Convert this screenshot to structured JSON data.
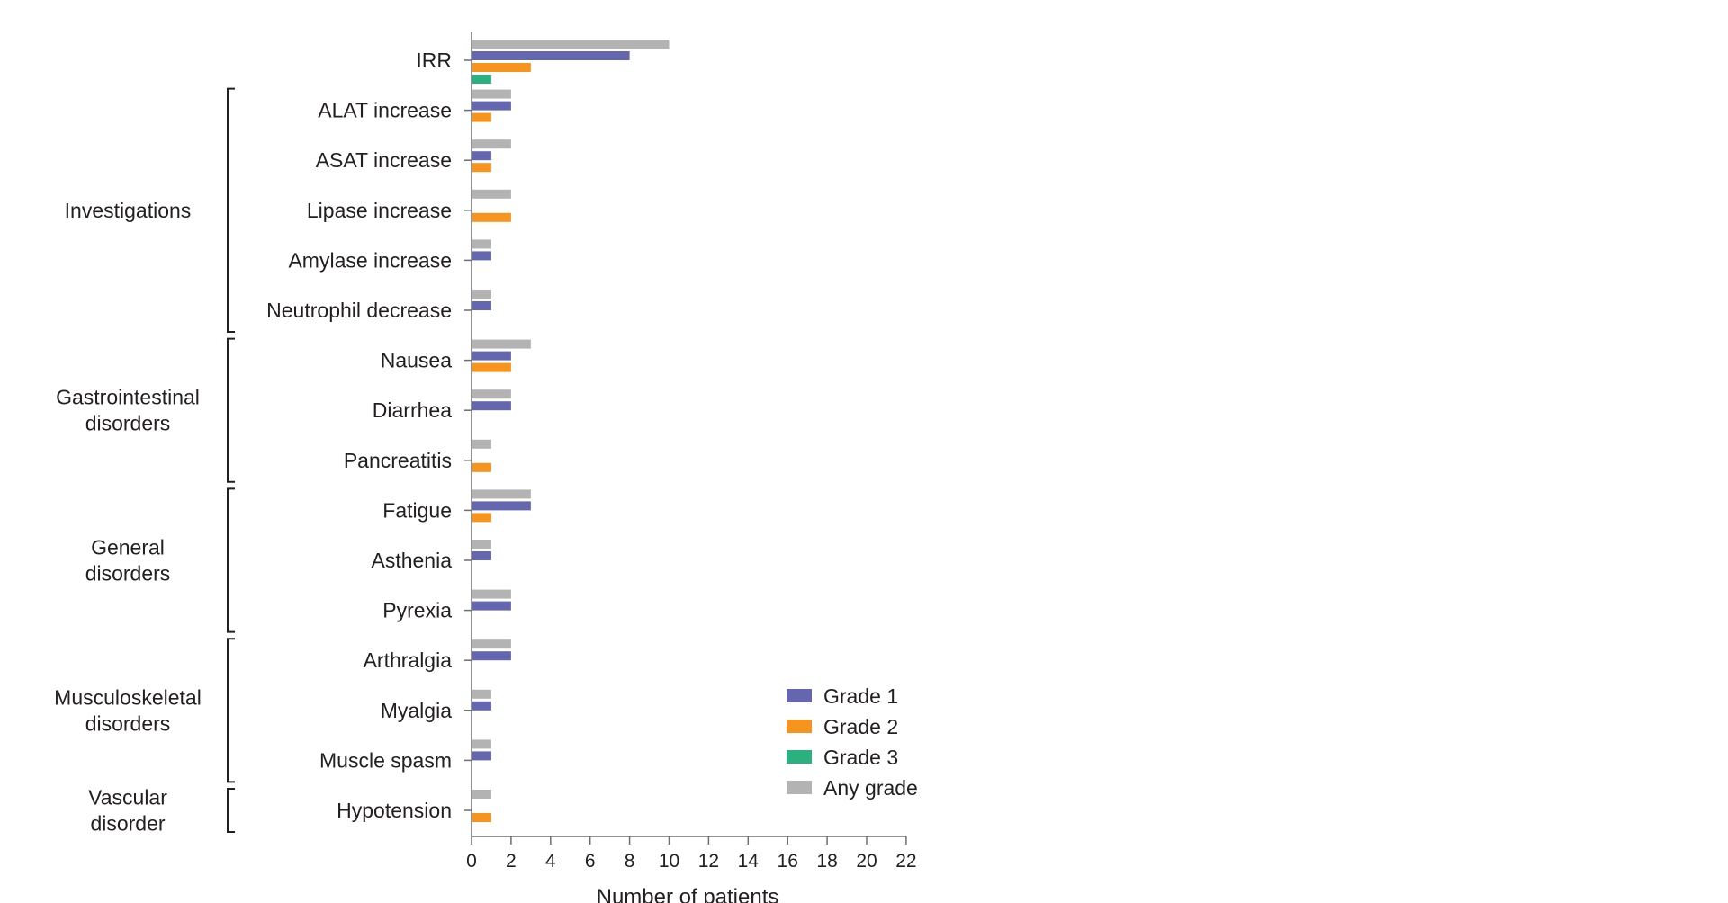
{
  "chart_data": {
    "type": "bar",
    "orientation": "horizontal",
    "xlabel": "Number of patients",
    "xlim": [
      0,
      22
    ],
    "xticks": [
      0,
      2,
      4,
      6,
      8,
      10,
      12,
      14,
      16,
      18,
      20,
      22
    ],
    "grid": false,
    "legend_position": "bottom-right",
    "colors": {
      "Any grade": "#b3b3b3",
      "Grade 1": "#6466b0",
      "Grade 2": "#f7941d",
      "Grade 3": "#2bb07f"
    },
    "legend": [
      "Grade 1",
      "Grade 2",
      "Grade 3",
      "Any grade"
    ],
    "categories": [
      "IRR",
      "ALAT increase",
      "ASAT increase",
      "Lipase increase",
      "Amylase increase",
      "Neutrophil decrease",
      "Nausea",
      "Diarrhea",
      "Pancreatitis",
      "Fatigue",
      "Asthenia",
      "Pyrexia",
      "Arthralgia",
      "Myalgia",
      "Muscle spasm",
      "Hypotension"
    ],
    "groups": [
      {
        "label": [
          "Investigations"
        ],
        "from": 1,
        "to": 5
      },
      {
        "label": [
          "Gastrointestinal",
          "disorders"
        ],
        "from": 6,
        "to": 8
      },
      {
        "label": [
          "General",
          "disorders"
        ],
        "from": 9,
        "to": 11
      },
      {
        "label": [
          "Musculoskeletal",
          "disorders"
        ],
        "from": 12,
        "to": 14
      },
      {
        "label": [
          "Vascular",
          "disorder"
        ],
        "from": 15,
        "to": 15
      }
    ],
    "series": [
      {
        "name": "Any grade",
        "values": [
          10,
          2,
          2,
          2,
          1,
          1,
          3,
          2,
          1,
          3,
          1,
          2,
          2,
          1,
          1,
          1
        ]
      },
      {
        "name": "Grade 1",
        "values": [
          8,
          2,
          1,
          0,
          1,
          1,
          2,
          2,
          0,
          3,
          1,
          2,
          2,
          1,
          1,
          0
        ]
      },
      {
        "name": "Grade 2",
        "values": [
          3,
          1,
          1,
          2,
          0,
          0,
          2,
          0,
          1,
          1,
          0,
          0,
          0,
          0,
          0,
          1
        ]
      },
      {
        "name": "Grade 3",
        "values": [
          1,
          0,
          0,
          0,
          0,
          0,
          0,
          0,
          0,
          0,
          0,
          0,
          0,
          0,
          0,
          0
        ]
      }
    ]
  }
}
